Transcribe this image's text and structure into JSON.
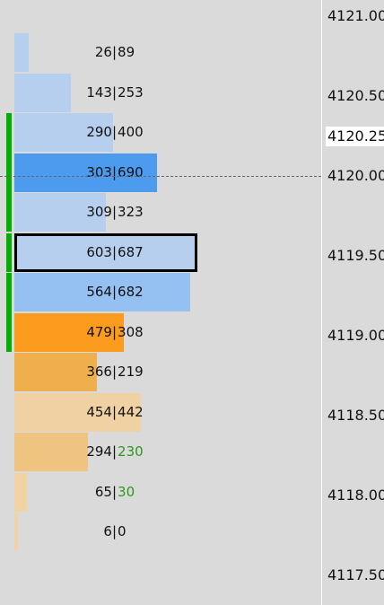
{
  "ladder": {
    "rows": [
      {
        "left": "26",
        "right": "89",
        "right_color": "#111111",
        "volume_fraction": 0.08,
        "bar_color": "#b7cfee"
      },
      {
        "left": "143",
        "right": "253",
        "right_color": "#111111",
        "volume_fraction": 0.31,
        "bar_color": "#b7cfee"
      },
      {
        "left": "290",
        "right": "400",
        "right_color": "#111111",
        "volume_fraction": 0.54,
        "bar_color": "#b7cfee"
      },
      {
        "left": "303",
        "right": "690",
        "right_color": "#111111",
        "volume_fraction": 0.78,
        "bar_color": "#4d9bef"
      },
      {
        "left": "309",
        "right": "323",
        "right_color": "#111111",
        "volume_fraction": 0.5,
        "bar_color": "#b7cfee"
      },
      {
        "left": "603",
        "right": "687",
        "right_color": "#111111",
        "volume_fraction": 1.0,
        "bar_color": "#b7cfee"
      },
      {
        "left": "564",
        "right": "682",
        "right_color": "#111111",
        "volume_fraction": 0.96,
        "bar_color": "#94c0f2"
      },
      {
        "left": "479",
        "right": "308",
        "right_color": "#111111",
        "volume_fraction": 0.6,
        "bar_color": "#fb9c1e"
      },
      {
        "left": "366",
        "right": "219",
        "right_color": "#111111",
        "volume_fraction": 0.45,
        "bar_color": "#efaf4d"
      },
      {
        "left": "454",
        "right": "442",
        "right_color": "#111111",
        "volume_fraction": 0.69,
        "bar_color": "#f0d1a3"
      },
      {
        "left": "294",
        "right": "230",
        "right_color": "#2a9a1a",
        "volume_fraction": 0.4,
        "bar_color": "#efc480"
      },
      {
        "left": "65",
        "right": "30",
        "right_color": "#2a9a1a",
        "volume_fraction": 0.07,
        "bar_color": "#f2d3a5"
      },
      {
        "left": "6",
        "right": "0",
        "right_color": "#111111",
        "volume_fraction": 0.02,
        "bar_color": "#f2d3a5"
      }
    ],
    "separator": "|",
    "selected_row_index": 5,
    "green_markers": [
      {
        "from_row": 2,
        "to_row": 4
      },
      {
        "from_row": 5,
        "to_row": 5
      },
      {
        "from_row": 6,
        "to_row": 7
      }
    ],
    "colors": {
      "background": "#dadada",
      "green_marker": "#00b000",
      "selection_border": "#000000"
    }
  },
  "price_axis": {
    "labels": [
      {
        "text": "4121.00",
        "highlight": false
      },
      {
        "text": "4120.50",
        "highlight": false
      },
      {
        "text": "4120.25",
        "highlight": true
      },
      {
        "text": "4120.00",
        "highlight": false
      },
      {
        "text": "4119.50",
        "highlight": false
      },
      {
        "text": "4119.00",
        "highlight": false
      },
      {
        "text": "4118.50",
        "highlight": false
      },
      {
        "text": "4118.00",
        "highlight": false
      },
      {
        "text": "4117.50",
        "highlight": false
      }
    ],
    "current_price": "4120.00"
  }
}
